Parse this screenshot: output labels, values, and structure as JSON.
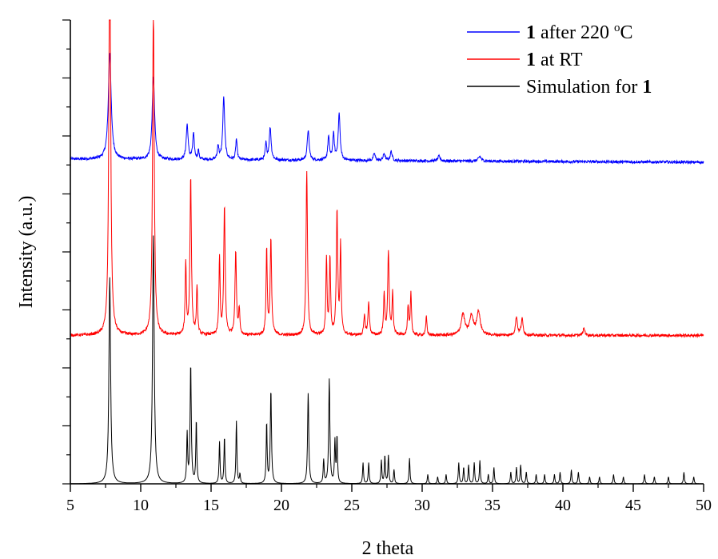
{
  "chart_data": {
    "type": "line",
    "xlabel": "2 theta",
    "ylabel": "Intensity (a.u.)",
    "xlim": [
      5,
      50
    ],
    "x_ticks": [
      5,
      10,
      15,
      20,
      25,
      30,
      35,
      40,
      45,
      50
    ],
    "y_units": "arbitrary (stacked, normalized)",
    "grid": false,
    "legend_position": "top-right",
    "series": [
      {
        "name_bold": "1",
        "name_rest": " after 220 ",
        "name_sup": "o",
        "name_tail": "C",
        "color": "#0000ff",
        "baseline": 0.7,
        "peaks": [
          [
            7.8,
            0.23,
            0.12
          ],
          [
            10.9,
            0.18,
            0.1
          ],
          [
            13.3,
            0.075,
            0.08
          ],
          [
            13.75,
            0.055,
            0.07
          ],
          [
            14.1,
            0.02,
            0.05
          ],
          [
            15.5,
            0.03,
            0.06
          ],
          [
            15.9,
            0.135,
            0.08
          ],
          [
            16.8,
            0.045,
            0.06
          ],
          [
            18.9,
            0.035,
            0.06
          ],
          [
            19.2,
            0.07,
            0.08
          ],
          [
            21.9,
            0.065,
            0.08
          ],
          [
            23.35,
            0.05,
            0.07
          ],
          [
            23.7,
            0.055,
            0.07
          ],
          [
            24.1,
            0.1,
            0.08
          ],
          [
            26.6,
            0.015,
            0.08
          ],
          [
            27.3,
            0.015,
            0.08
          ],
          [
            27.8,
            0.02,
            0.08
          ],
          [
            31.2,
            0.01,
            0.1
          ],
          [
            34.1,
            0.01,
            0.12
          ]
        ]
      },
      {
        "name_bold": "1",
        "name_rest": " at RT",
        "color": "#ff0000",
        "baseline": 0.32,
        "peaks": [
          [
            7.8,
            0.965,
            0.07
          ],
          [
            10.9,
            0.71,
            0.07
          ],
          [
            13.2,
            0.155,
            0.05
          ],
          [
            13.55,
            0.34,
            0.06
          ],
          [
            14.0,
            0.1,
            0.05
          ],
          [
            15.6,
            0.165,
            0.05
          ],
          [
            15.95,
            0.275,
            0.06
          ],
          [
            16.75,
            0.18,
            0.06
          ],
          [
            17.0,
            0.055,
            0.05
          ],
          [
            18.95,
            0.185,
            0.05
          ],
          [
            19.25,
            0.205,
            0.06
          ],
          [
            21.8,
            0.355,
            0.06
          ],
          [
            23.2,
            0.165,
            0.05
          ],
          [
            23.45,
            0.165,
            0.05
          ],
          [
            23.95,
            0.265,
            0.06
          ],
          [
            24.2,
            0.19,
            0.05
          ],
          [
            25.9,
            0.04,
            0.06
          ],
          [
            26.2,
            0.07,
            0.06
          ],
          [
            27.3,
            0.09,
            0.05
          ],
          [
            27.6,
            0.18,
            0.06
          ],
          [
            27.9,
            0.09,
            0.05
          ],
          [
            29.0,
            0.06,
            0.05
          ],
          [
            29.2,
            0.09,
            0.05
          ],
          [
            30.3,
            0.04,
            0.05
          ],
          [
            32.9,
            0.045,
            0.15
          ],
          [
            33.5,
            0.04,
            0.15
          ],
          [
            34.0,
            0.05,
            0.15
          ],
          [
            36.7,
            0.04,
            0.08
          ],
          [
            37.1,
            0.035,
            0.08
          ],
          [
            41.5,
            0.015,
            0.08
          ]
        ]
      },
      {
        "name_rest": "Simulation for ",
        "name_bold": "1",
        "bold_last": true,
        "color": "#000000",
        "baseline": 0.0,
        "peaks": [
          [
            7.8,
            0.445,
            0.07
          ],
          [
            10.9,
            0.535,
            0.07
          ],
          [
            13.3,
            0.105,
            0.04
          ],
          [
            13.55,
            0.255,
            0.05
          ],
          [
            13.95,
            0.135,
            0.04
          ],
          [
            15.6,
            0.09,
            0.04
          ],
          [
            15.95,
            0.1,
            0.04
          ],
          [
            16.8,
            0.135,
            0.04
          ],
          [
            17.05,
            0.02,
            0.04
          ],
          [
            18.95,
            0.13,
            0.04
          ],
          [
            19.25,
            0.2,
            0.05
          ],
          [
            21.9,
            0.195,
            0.05
          ],
          [
            23.0,
            0.05,
            0.04
          ],
          [
            23.4,
            0.225,
            0.05
          ],
          [
            23.8,
            0.09,
            0.04
          ],
          [
            23.95,
            0.1,
            0.04
          ],
          [
            25.8,
            0.045,
            0.04
          ],
          [
            26.2,
            0.045,
            0.04
          ],
          [
            27.1,
            0.05,
            0.04
          ],
          [
            27.35,
            0.06,
            0.04
          ],
          [
            27.6,
            0.06,
            0.04
          ],
          [
            28.0,
            0.03,
            0.04
          ],
          [
            29.1,
            0.055,
            0.04
          ],
          [
            30.4,
            0.02,
            0.04
          ],
          [
            31.1,
            0.015,
            0.04
          ],
          [
            31.7,
            0.02,
            0.04
          ],
          [
            32.6,
            0.045,
            0.04
          ],
          [
            32.95,
            0.035,
            0.04
          ],
          [
            33.3,
            0.04,
            0.04
          ],
          [
            33.7,
            0.045,
            0.04
          ],
          [
            34.1,
            0.05,
            0.04
          ],
          [
            34.7,
            0.02,
            0.04
          ],
          [
            35.1,
            0.035,
            0.04
          ],
          [
            36.3,
            0.025,
            0.04
          ],
          [
            36.7,
            0.035,
            0.04
          ],
          [
            37.0,
            0.04,
            0.04
          ],
          [
            37.4,
            0.025,
            0.04
          ],
          [
            38.1,
            0.02,
            0.04
          ],
          [
            38.7,
            0.02,
            0.04
          ],
          [
            39.4,
            0.02,
            0.04
          ],
          [
            39.8,
            0.025,
            0.04
          ],
          [
            40.6,
            0.03,
            0.04
          ],
          [
            41.1,
            0.025,
            0.04
          ],
          [
            41.9,
            0.015,
            0.04
          ],
          [
            42.6,
            0.015,
            0.04
          ],
          [
            43.6,
            0.02,
            0.04
          ],
          [
            44.3,
            0.015,
            0.04
          ],
          [
            45.8,
            0.02,
            0.04
          ],
          [
            46.5,
            0.015,
            0.04
          ],
          [
            47.5,
            0.015,
            0.04
          ],
          [
            48.6,
            0.025,
            0.04
          ],
          [
            49.3,
            0.015,
            0.04
          ]
        ]
      }
    ]
  }
}
